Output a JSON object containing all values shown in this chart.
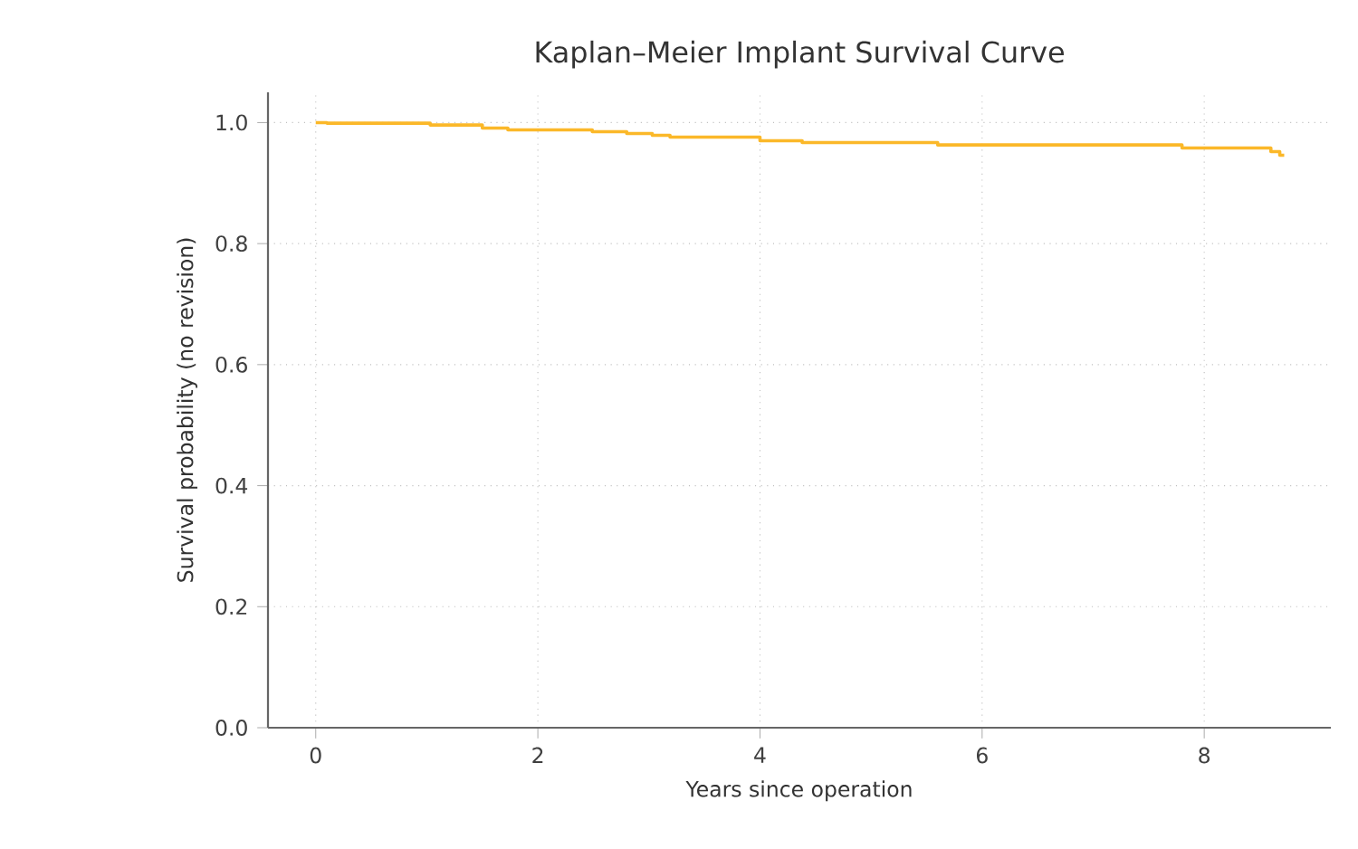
{
  "chart_data": {
    "type": "step",
    "title": "Kaplan–Meier Implant Survival Curve",
    "xlabel": "Years since operation",
    "ylabel": "Survival probability (no revision)",
    "x": [
      0,
      0.1,
      1.03,
      1.5,
      1.73,
      2.49,
      2.8,
      3.03,
      3.19,
      4.0,
      4.38,
      5.6,
      7.8,
      8.6,
      8.68,
      8.72
    ],
    "series": [
      {
        "color": "#fbb829",
        "values": [
          1.0,
          0.999,
          0.996,
          0.991,
          0.988,
          0.985,
          0.982,
          0.979,
          0.976,
          0.97,
          0.967,
          0.963,
          0.958,
          0.952,
          0.946,
          0.946
        ]
      }
    ],
    "xlim": [
      -0.43,
      9.14
    ],
    "ylim": [
      0,
      1.05
    ],
    "xticks": [
      0,
      2,
      4,
      6,
      8
    ],
    "yticks": [
      {
        "value": 0,
        "label": "0.0"
      },
      {
        "value": 0.2,
        "label": "0.2"
      },
      {
        "value": 0.4,
        "label": "0.4"
      },
      {
        "value": 0.6,
        "label": "0.6"
      },
      {
        "value": 0.8,
        "label": "0.8"
      },
      {
        "value": 1.0,
        "label": "1.0"
      }
    ],
    "grid": true,
    "marker": "none",
    "line_style": "solid"
  }
}
